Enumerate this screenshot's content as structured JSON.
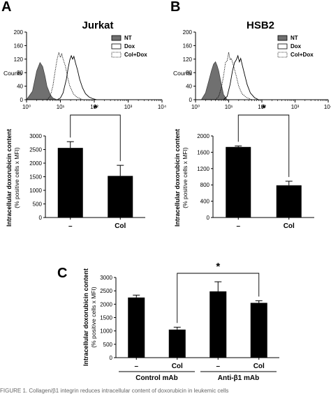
{
  "chart_data": [
    {
      "id": "A-hist",
      "type": "area",
      "panel_label": "A",
      "title": "Jurkat",
      "ylabel": "Counts",
      "xscale": "log",
      "xlim": [
        1,
        10000
      ],
      "ylim": [
        0,
        200
      ],
      "yticks": [
        "0",
        "40",
        "80",
        "120",
        "160",
        "200"
      ],
      "xticks": [
        "10⁰",
        "10¹",
        "10²",
        "10³",
        "10⁴"
      ],
      "legend": [
        "NT",
        "Dox",
        "Col+Dox"
      ],
      "legend_position": "top-right",
      "series": [
        {
          "name": "NT",
          "style": "filled",
          "color": "#707070",
          "x": [
            1,
            1.5,
            2,
            2.5,
            3,
            3.5,
            4,
            5,
            6,
            7,
            8
          ],
          "y": [
            0,
            25,
            85,
            110,
            98,
            70,
            40,
            15,
            5,
            2,
            0
          ]
        },
        {
          "name": "Dox",
          "style": "solid",
          "x": [
            8,
            10,
            12,
            15,
            17,
            19,
            21,
            23,
            25,
            28,
            32,
            37,
            45,
            55,
            70,
            90,
            120
          ],
          "y": [
            0,
            5,
            20,
            60,
            95,
            118,
            130,
            120,
            128,
            108,
            88,
            60,
            35,
            18,
            8,
            3,
            0
          ]
        },
        {
          "name": "Col+Dox",
          "style": "dotted",
          "x": [
            4,
            5,
            6,
            7,
            8,
            9,
            10,
            11,
            12,
            14,
            16,
            19,
            24,
            30,
            45
          ],
          "y": [
            0,
            10,
            40,
            85,
            120,
            140,
            125,
            135,
            120,
            100,
            70,
            40,
            18,
            8,
            0
          ]
        }
      ]
    },
    {
      "id": "B-hist",
      "type": "area",
      "panel_label": "B",
      "title": "HSB2",
      "ylabel": "Counts",
      "xscale": "log",
      "xlim": [
        1,
        10000
      ],
      "ylim": [
        0,
        200
      ],
      "yticks": [
        "0",
        "40",
        "80",
        "120",
        "160",
        "200"
      ],
      "xticks": [
        "10⁰",
        "10¹",
        "10²",
        "10³",
        "10⁴"
      ],
      "legend": [
        "NT",
        "Dox",
        "Col+Dox"
      ],
      "legend_position": "top-right",
      "series": [
        {
          "name": "NT",
          "style": "filled",
          "color": "#707070",
          "x": [
            1.5,
            2,
            2.5,
            3,
            3.5,
            4,
            4.5,
            5,
            6,
            7,
            9
          ],
          "y": [
            0,
            20,
            55,
            85,
            105,
            112,
            100,
            85,
            45,
            15,
            0
          ]
        },
        {
          "name": "Dox",
          "style": "solid",
          "x": [
            7,
            9,
            11,
            13,
            15,
            17,
            19,
            21,
            23,
            26,
            30,
            36,
            45,
            60,
            80
          ],
          "y": [
            0,
            10,
            45,
            85,
            110,
            118,
            130,
            112,
            122,
            100,
            75,
            45,
            20,
            6,
            0
          ]
        },
        {
          "name": "Col+Dox",
          "style": "dotted",
          "x": [
            4,
            5,
            6,
            7,
            8,
            9,
            10,
            11,
            12,
            14,
            17,
            20,
            25,
            35,
            50
          ],
          "y": [
            0,
            10,
            35,
            70,
            110,
            115,
            140,
            118,
            122,
            100,
            70,
            40,
            18,
            6,
            0
          ]
        }
      ]
    },
    {
      "id": "A-bar",
      "type": "bar",
      "ylabel": "Intracellular doxorubicin content",
      "ylabel2": "(% positive cells x MFI)",
      "categories": [
        "–",
        "Col"
      ],
      "values": [
        2560,
        1530
      ],
      "errors": [
        230,
        390
      ],
      "ylim": [
        0,
        3000
      ],
      "yticks": [
        "0",
        "500",
        "1000",
        "1500",
        "2000",
        "2500",
        "3000"
      ],
      "significance": "*"
    },
    {
      "id": "B-bar",
      "type": "bar",
      "ylabel": "Intracellular doxorubicin content",
      "ylabel2": "(% positive cells x MFI)",
      "categories": [
        "–",
        "Col"
      ],
      "values": [
        1730,
        790
      ],
      "errors": [
        25,
        100
      ],
      "ylim": [
        0,
        2000
      ],
      "yticks": [
        "0",
        "400",
        "800",
        "1200",
        "1600",
        "2000"
      ],
      "significance": "*"
    },
    {
      "id": "C-bar",
      "type": "bar",
      "panel_label": "C",
      "ylabel": "Intracellular doxorubicin content",
      "ylabel2": "(% positive cells x MFI)",
      "categories": [
        "–",
        "Col",
        "–",
        "Col"
      ],
      "groups": [
        "Control mAb",
        "Anti-β1 mAb"
      ],
      "values": [
        2250,
        1050,
        2480,
        2050
      ],
      "errors": [
        90,
        90,
        360,
        80
      ],
      "ylim": [
        0,
        3000
      ],
      "yticks": [
        "0",
        "500",
        "1000",
        "1500",
        "2000",
        "2500",
        "3000"
      ],
      "significance": "*"
    }
  ],
  "caption_fragment": "FIGURE 1. Collagen/β1 integrin reduces intracellular content of doxorubicin in leukemic cells"
}
